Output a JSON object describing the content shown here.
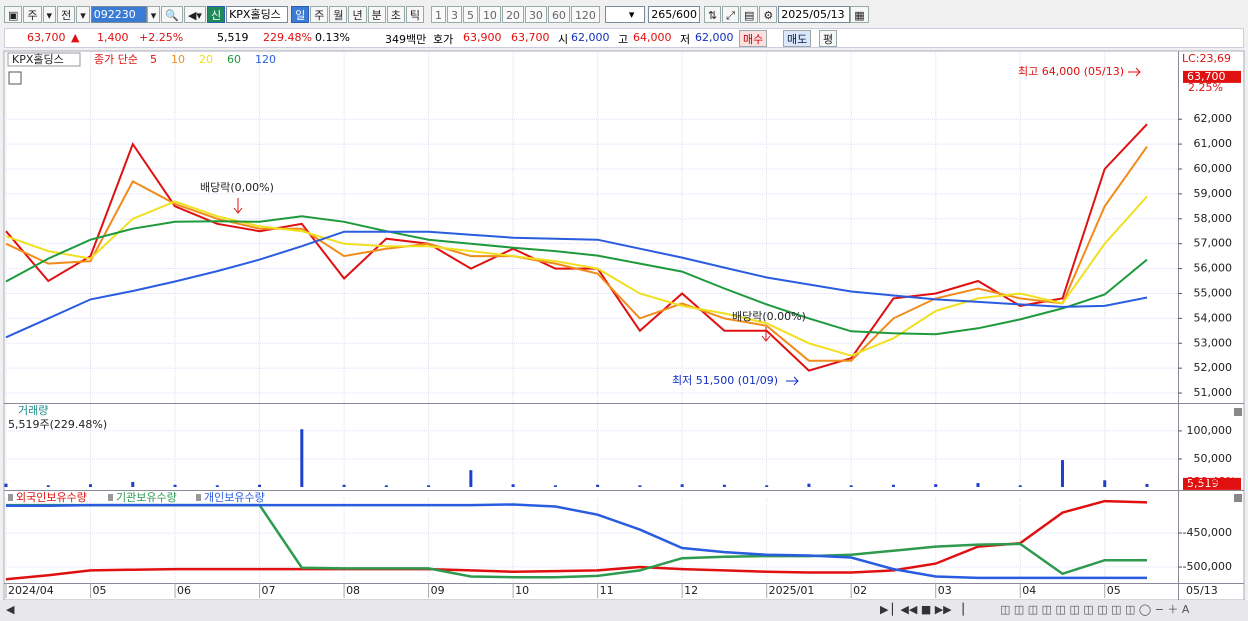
{
  "toolbar": {
    "market": "주",
    "scope": "전",
    "code": "092230",
    "badge": "신",
    "name": "KPX홀딩스",
    "periods": [
      "일",
      "주",
      "월",
      "년",
      "분",
      "초",
      "틱"
    ],
    "intervals": [
      "1",
      "3",
      "5",
      "10",
      "20",
      "30",
      "60",
      "120"
    ],
    "count": "265",
    "count_max": "/600",
    "date": "2025/05/13"
  },
  "quote": {
    "price": "63,700",
    "direction": "▲",
    "change": "1,400",
    "change_rate": "+2.25%",
    "volume": "5,519",
    "volume_rate": "229.48%",
    "turnover": "0.13%",
    "amount": "349백만",
    "ask_label": "호가",
    "ask": "63,900",
    "bid": "63,700",
    "open_label": "시",
    "open": "62,000",
    "high_label": "고",
    "high": "64,000",
    "low_label": "저",
    "low": "62,000",
    "buy": "매수",
    "sell": "매도",
    "eval": "평"
  },
  "chart_data": [
    {
      "type": "line",
      "stock": "KPX홀딩스",
      "legend_title": "종가 단순",
      "categories": [
        "2024/04",
        null,
        "05",
        null,
        "06",
        null,
        "07",
        null,
        "08",
        null,
        "09",
        null,
        "10",
        null,
        "11",
        null,
        "12",
        null,
        "2025/01",
        null,
        "02",
        null,
        "03",
        null,
        "04",
        null,
        "05",
        null
      ],
      "end_label": "05/13",
      "series": [
        {
          "name": "5",
          "color": "#e01010",
          "values": [
            57500,
            55500,
            56500,
            61000,
            58500,
            57800,
            57500,
            57800,
            55600,
            57200,
            57000,
            56000,
            56800,
            56000,
            56000,
            53500,
            55000,
            53500,
            53500,
            51900,
            52400,
            54800,
            55000,
            55500,
            54500,
            54800,
            60000,
            61800
          ]
        },
        {
          "name": "10",
          "color": "#f08c1c",
          "values": [
            57000,
            56200,
            56300,
            59500,
            58600,
            58000,
            57600,
            57600,
            56500,
            56800,
            57000,
            56500,
            56500,
            56200,
            55800,
            54000,
            54600,
            54000,
            53700,
            52300,
            52300,
            54000,
            54800,
            55200,
            54800,
            54600,
            58500,
            60900
          ]
        },
        {
          "name": "20",
          "color": "#f0e020",
          "values": [
            57300,
            56700,
            56400,
            58000,
            58700,
            58100,
            57700,
            57500,
            57000,
            56900,
            56900,
            56700,
            56500,
            56300,
            56000,
            55000,
            54500,
            54200,
            53800,
            53000,
            52500,
            53200,
            54300,
            54800,
            55000,
            54600,
            57000,
            58900
          ]
        },
        {
          "name": "60",
          "color": "#1e9a3c",
          "values": [
            55480,
            56400,
            57160,
            57600,
            57880,
            57900,
            57880,
            58100,
            57880,
            57500,
            57160,
            57000,
            56840,
            56700,
            56520,
            56200,
            55880,
            55200,
            54560,
            54000,
            53480,
            53400,
            53360,
            53600,
            53960,
            54400,
            54960,
            56360
          ]
        },
        {
          "name": "120",
          "color": "#2a5ce0",
          "values": [
            53240,
            54000,
            54760,
            55100,
            55480,
            55900,
            56360,
            56900,
            57480,
            57480,
            57480,
            57360,
            57240,
            57200,
            57160,
            56800,
            56440,
            56040,
            55640,
            55360,
            55080,
            54920,
            54760,
            54660,
            54560,
            54460,
            54500,
            54840
          ]
        }
      ],
      "ylim": [
        50600,
        64700
      ],
      "yticks": [
        {
          "value": 51000,
          "label": "51,000"
        },
        {
          "value": 52000,
          "label": "52,000"
        },
        {
          "value": 53000,
          "label": "53,000"
        },
        {
          "value": 54000,
          "label": "54,000"
        },
        {
          "value": 55000,
          "label": "55,000"
        },
        {
          "value": 56000,
          "label": "56,000"
        },
        {
          "value": 57000,
          "label": "57,000"
        },
        {
          "value": 58000,
          "label": "58,000"
        },
        {
          "value": 59000,
          "label": "59,000"
        },
        {
          "value": 60000,
          "label": "60,000"
        },
        {
          "value": 61000,
          "label": "61,000"
        },
        {
          "value": 62000,
          "label": "62,000"
        }
      ],
      "current": {
        "value": 63700,
        "label": "63,700"
      },
      "change_label": "2.25%",
      "lc_label": "LC:23,69",
      "annotations": [
        "최고 64,000 (05/13)",
        "최저 51,500 (01/09)",
        "배당락(0,00%)",
        "배당락(0.00%)"
      ],
      "grid": true
    },
    {
      "type": "bar",
      "title": "거래량",
      "subtitle": "5,519주(229.48%)",
      "values": [
        6000,
        3000,
        5000,
        9000,
        4000,
        3000,
        4000,
        103000,
        4000,
        3000,
        3000,
        30000,
        5000,
        3000,
        4000,
        3000,
        5000,
        4000,
        3000,
        6000,
        3000,
        4000,
        5000,
        7000,
        3000,
        48000,
        12000,
        5519
      ],
      "color": "#1c3fd0",
      "ylim": [
        0,
        148000
      ],
      "yticks": [
        {
          "value": 50000,
          "label": "50,000"
        },
        {
          "value": 100000,
          "label": "100,000"
        }
      ],
      "current": {
        "value": 5519,
        "label": "5,519"
      },
      "current_rate": "229.48%",
      "grid": true
    },
    {
      "type": "line",
      "series": [
        {
          "name": "외국인보유수량",
          "color": "#e01010",
          "values": [
            -518000,
            -512000,
            -505000,
            -504000,
            -503000,
            -503000,
            -503000,
            -503000,
            -503000,
            -503000,
            -503000,
            -505000,
            -507000,
            -506000,
            -505000,
            -500000,
            -503000,
            -505000,
            -507000,
            -508000,
            -508000,
            -505000,
            -495000,
            -470000,
            -465000,
            -420000,
            -403000,
            -405000
          ]
        },
        {
          "name": "기관보유수량",
          "color": "#2e9a4e",
          "values": [
            -409000,
            -409000,
            -409000,
            -409000,
            -409000,
            -409000,
            -409000,
            -501000,
            -502000,
            -502000,
            -502000,
            -514000,
            -515000,
            -515000,
            -513000,
            -505000,
            -487000,
            -485000,
            -484000,
            -484000,
            -482000,
            -476000,
            -470000,
            -467000,
            -466000,
            -510000,
            -490000,
            -490000
          ]
        },
        {
          "name": "개인보유수량",
          "color": "#2a5ce0",
          "values": [
            -410000,
            -410000,
            -409000,
            -409000,
            -409000,
            -409000,
            -409000,
            -409000,
            -409000,
            -409000,
            -409000,
            -409000,
            -408000,
            -411000,
            -423000,
            -445000,
            -472000,
            -478000,
            -482000,
            -483000,
            -486000,
            -503000,
            -514000,
            -516000,
            -516000,
            -516000,
            -516000,
            -516000
          ]
        }
      ],
      "ylim": [
        -523500,
        -398500
      ],
      "yticks": [
        {
          "value": -450000,
          "label": "-450,000"
        },
        {
          "value": -500000,
          "label": "-500,000"
        }
      ],
      "grid": true
    }
  ]
}
